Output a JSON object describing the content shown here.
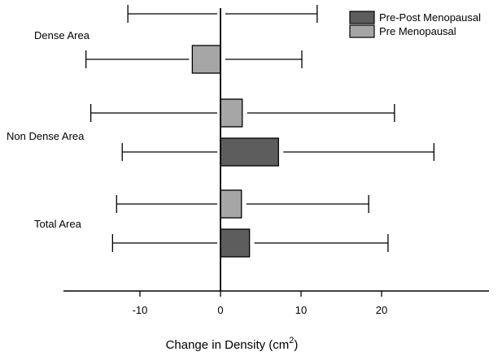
{
  "chart_data": {
    "type": "bar",
    "orientation": "horizontal",
    "error_bars": true,
    "xlabel": "Change in Density (cm",
    "xlabel_superscript": "2",
    "xlabel_close": ")",
    "xlim": [
      -19,
      30
    ],
    "xticks": [
      -10,
      0,
      10,
      20
    ],
    "xtick_labels": [
      "-10",
      "0",
      "10",
      "20"
    ],
    "groups": [
      {
        "label": "Dense Area",
        "bars": [
          {
            "series": "Pre-Post Menopausal",
            "value": 0,
            "err_low": -11.5,
            "err_high": 12.0
          },
          {
            "series": "Pre Menopausal",
            "value": -3.5,
            "err_low": -16.7,
            "err_high": 10.1
          }
        ]
      },
      {
        "label": "Non Dense Area",
        "bars": [
          {
            "series": "Pre Menopausal",
            "value": 2.7,
            "err_low": -16.1,
            "err_high": 21.6
          },
          {
            "series": "Pre-Post Menopausal",
            "value": 7.2,
            "err_low": -12.2,
            "err_high": 26.5
          }
        ]
      },
      {
        "label": "Total Area",
        "bars": [
          {
            "series": "Pre Menopausal",
            "value": 2.6,
            "err_low": -12.9,
            "err_high": 18.4
          },
          {
            "series": "Pre-Post Menopausal",
            "value": 3.6,
            "err_low": -13.4,
            "err_high": 20.8
          }
        ]
      }
    ],
    "legend": {
      "placement": "top-right",
      "entries": [
        {
          "name": "Pre-Post Menopausal",
          "color": "#5d5d5d"
        },
        {
          "name": "Pre Menopausal",
          "color": "#a6a6a6"
        }
      ]
    },
    "grid": false
  }
}
